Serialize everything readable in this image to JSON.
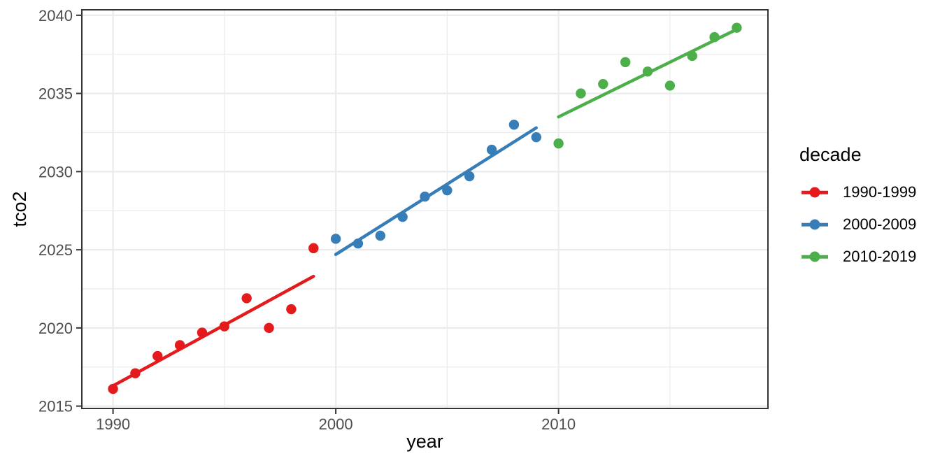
{
  "chart_data": {
    "type": "scatter",
    "title": "",
    "xlabel": "year",
    "ylabel": "tco2",
    "legend_title": "decade",
    "legend_position": "right",
    "grid": true,
    "xlim": [
      1988.6,
      2019.4
    ],
    "ylim": [
      2014.85,
      2040.35
    ],
    "x_major_ticks": [
      1990,
      2000,
      2010
    ],
    "x_minor_gridlines": [
      1995,
      2005,
      2015
    ],
    "y_major_ticks": [
      2015,
      2020,
      2025,
      2030,
      2035,
      2040
    ],
    "y_minor_gridlines": [
      2017.5,
      2022.5,
      2027.5,
      2032.5,
      2037.5
    ],
    "series": [
      {
        "name": "1990-1999",
        "color": "#E41A1C",
        "x": [
          1990,
          1991,
          1992,
          1993,
          1994,
          1995,
          1996,
          1997,
          1998,
          1999
        ],
        "y": [
          2016.1,
          2017.1,
          2018.2,
          2018.9,
          2019.7,
          2020.1,
          2021.9,
          2020.0,
          2021.2,
          2025.1
        ],
        "trend_line": {
          "x": [
            1990,
            1999
          ],
          "y": [
            2016.3,
            2023.3
          ]
        }
      },
      {
        "name": "2000-2009",
        "color": "#377EB8",
        "x": [
          2000,
          2001,
          2002,
          2003,
          2004,
          2005,
          2006,
          2007,
          2008,
          2009
        ],
        "y": [
          2025.7,
          2025.4,
          2025.9,
          2027.1,
          2028.4,
          2028.8,
          2029.7,
          2031.4,
          2033.0,
          2032.2
        ],
        "trend_line": {
          "x": [
            2000,
            2009
          ],
          "y": [
            2024.7,
            2032.8
          ]
        }
      },
      {
        "name": "2010-2019",
        "color": "#4DAF4A",
        "x": [
          2010,
          2011,
          2012,
          2013,
          2014,
          2015,
          2016,
          2017,
          2018
        ],
        "y": [
          2031.8,
          2035.0,
          2035.6,
          2037.0,
          2036.4,
          2035.5,
          2037.4,
          2038.6,
          2039.2
        ],
        "trend_line": {
          "x": [
            2010,
            2018
          ],
          "y": [
            2033.5,
            2039.1
          ]
        }
      }
    ],
    "style": {
      "background": "#FFFFFF",
      "panel_background": "#FFFFFF",
      "grid_color": "#EBEBEB",
      "panel_border_color": "#333333",
      "tick_color": "#333333",
      "tick_label_color": "#4D4D4D",
      "axis_title_color": "#000000",
      "point_radius": 7.2,
      "line_width": 4.5
    }
  }
}
